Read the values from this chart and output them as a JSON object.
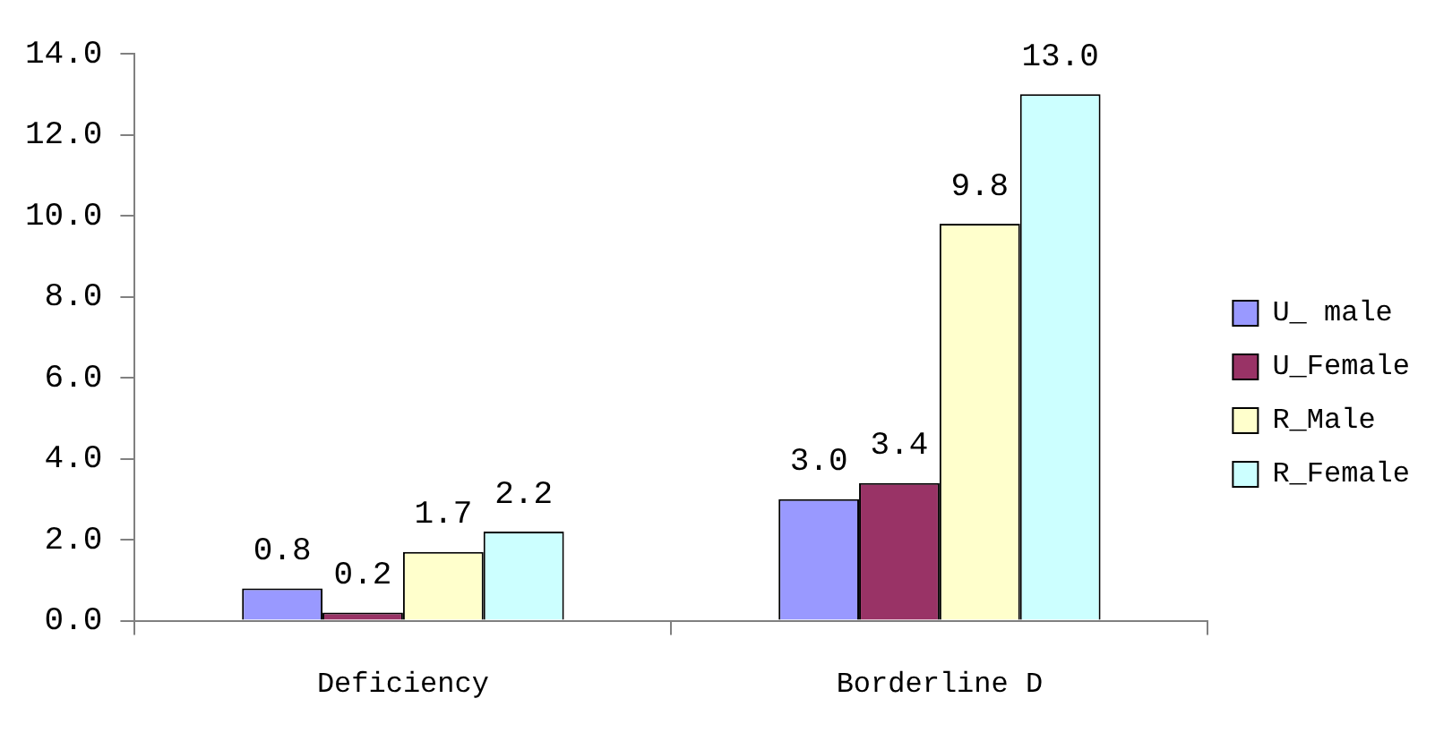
{
  "chart_data": {
    "type": "bar",
    "categories": [
      "Deficiency",
      "Borderline D"
    ],
    "series": [
      {
        "name": "U_ male",
        "color": "#9999ff",
        "values": [
          0.8,
          3.0
        ],
        "value_labels": [
          "0.8",
          "3.0"
        ]
      },
      {
        "name": "U_Female",
        "color": "#993366",
        "values": [
          0.2,
          3.4
        ],
        "value_labels": [
          "0.2",
          "3.4"
        ]
      },
      {
        "name": "R_Male",
        "color": "#ffffcc",
        "values": [
          1.7,
          9.8
        ],
        "value_labels": [
          "1.7",
          "9.8"
        ]
      },
      {
        "name": "R_Female",
        "color": "#ccffff",
        "values": [
          2.2,
          13.0
        ],
        "value_labels": [
          "2.2",
          "13.0"
        ]
      }
    ],
    "ylim": [
      0,
      14
    ],
    "yticks": [
      {
        "value": 0,
        "label": "0.0"
      },
      {
        "value": 2,
        "label": "2.0"
      },
      {
        "value": 4,
        "label": "4.0"
      },
      {
        "value": 6,
        "label": "6.0"
      },
      {
        "value": 8,
        "label": "8.0"
      },
      {
        "value": 10,
        "label": "10.0"
      },
      {
        "value": 12,
        "label": "12.0"
      },
      {
        "value": 14,
        "label": "14.0"
      }
    ],
    "grid": false,
    "legend": "right"
  }
}
